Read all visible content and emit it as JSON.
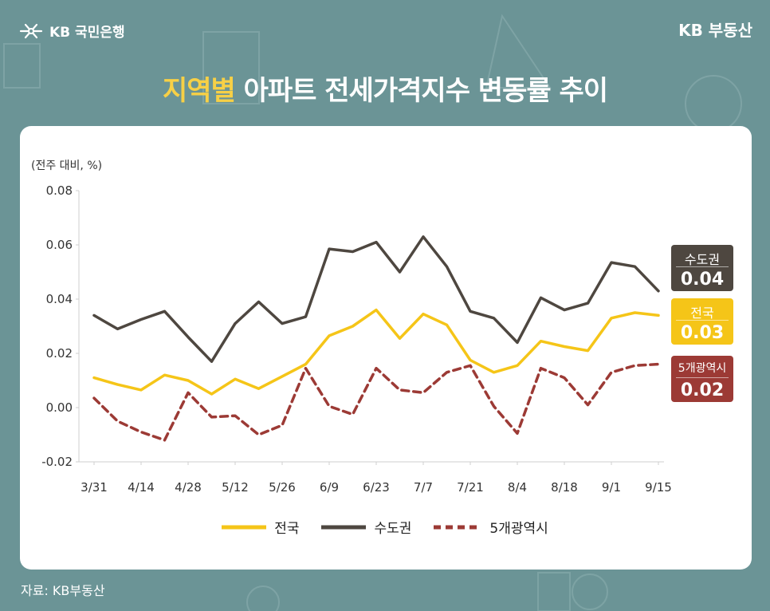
{
  "header": {
    "bank_logo": "KB 국민은행",
    "brand_logo": "KB 부동산"
  },
  "title": {
    "highlight": "지역별",
    "rest": " 아파트 전세가격지수 변동률 추이"
  },
  "source": "자료: KB부동산",
  "colors": {
    "background": "#6b9496",
    "title_highlight": "#f7d046",
    "national": "#f5c518",
    "capital": "#4e4740",
    "metro5": "#9c3a35"
  },
  "end_labels": {
    "capital": {
      "name": "수도권",
      "value": "0.04"
    },
    "national": {
      "name": "전국",
      "value": "0.03"
    },
    "metro5": {
      "name": "5개광역시",
      "value": "0.02"
    }
  },
  "chart_data": {
    "type": "line",
    "ylabel": "(전주 대비, %)",
    "ylim": [
      -0.02,
      0.08
    ],
    "yticks": [
      "0.08",
      "0.06",
      "0.04",
      "0.02",
      "0.00",
      "-0.02"
    ],
    "xtick_labels": [
      "3/31",
      "4/14",
      "4/28",
      "5/12",
      "5/26",
      "6/9",
      "6/23",
      "7/7",
      "7/21",
      "8/4",
      "8/18",
      "9/1",
      "9/15"
    ],
    "x": [
      "3/31",
      "4/7",
      "4/14",
      "4/21",
      "4/28",
      "5/5",
      "5/12",
      "5/19",
      "5/26",
      "6/2",
      "6/9",
      "6/16",
      "6/23",
      "6/30",
      "7/7",
      "7/14",
      "7/21",
      "7/28",
      "8/4",
      "8/11",
      "8/18",
      "8/25",
      "9/1",
      "9/8",
      "9/15"
    ],
    "grid": false,
    "legend_position": "bottom",
    "series": [
      {
        "name": "전국",
        "style": "solid",
        "values": [
          0.011,
          0.0085,
          0.0065,
          0.012,
          0.01,
          0.005,
          0.0105,
          0.007,
          0.0115,
          0.016,
          0.0265,
          0.03,
          0.036,
          0.0255,
          0.0345,
          0.0305,
          0.0175,
          0.013,
          0.0155,
          0.0245,
          0.0225,
          0.021,
          0.033,
          0.035,
          0.034
        ]
      },
      {
        "name": "수도권",
        "style": "solid",
        "values": [
          0.034,
          0.029,
          0.0325,
          0.0355,
          0.026,
          0.017,
          0.031,
          0.039,
          0.031,
          0.0335,
          0.0585,
          0.0575,
          0.061,
          0.05,
          0.063,
          0.052,
          0.0355,
          0.033,
          0.024,
          0.0405,
          0.036,
          0.0385,
          0.0535,
          0.052,
          0.043
        ]
      },
      {
        "name": "5개광역시",
        "style": "dashed",
        "values": [
          0.0035,
          -0.005,
          -0.009,
          -0.012,
          0.0055,
          -0.0035,
          -0.003,
          -0.01,
          -0.0065,
          0.0145,
          0.0005,
          -0.0025,
          0.0145,
          0.0065,
          0.0055,
          0.013,
          0.0155,
          0.0005,
          -0.0095,
          0.0145,
          0.011,
          0.001,
          0.013,
          0.0155,
          0.016
        ]
      }
    ]
  }
}
